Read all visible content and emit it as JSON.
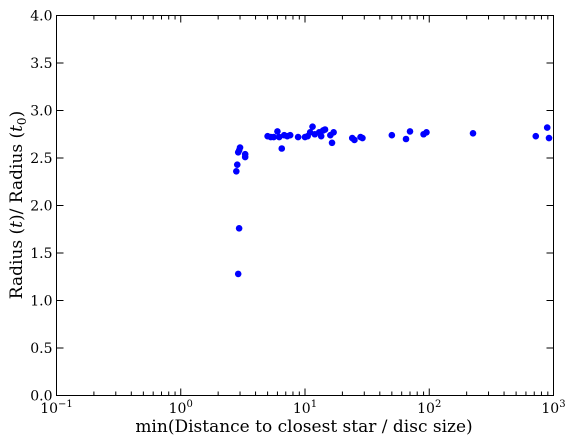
{
  "chart_data": {
    "type": "scatter",
    "title": "",
    "xlabel": "min(Distance to closest star / disc size)",
    "ylabel_parts": [
      "Radius (",
      "t",
      ")/ Radius (",
      "t",
      "0",
      ")"
    ],
    "xscale": "log",
    "xlim": [
      0.1,
      1000
    ],
    "ylim": [
      0.0,
      4.0
    ],
    "grid": false,
    "legend": "none",
    "marker_color": "#0000ff",
    "x_ticks": [
      {
        "value": 0.1,
        "base": "10",
        "exp": "−1"
      },
      {
        "value": 1,
        "base": "10",
        "exp": "0"
      },
      {
        "value": 10,
        "base": "10",
        "exp": "1"
      },
      {
        "value": 100,
        "base": "10",
        "exp": "2"
      },
      {
        "value": 1000,
        "base": "10",
        "exp": "3"
      }
    ],
    "y_ticks": [
      "0.0",
      "0.5",
      "1.0",
      "1.5",
      "2.0",
      "2.5",
      "3.0",
      "3.5",
      "4.0"
    ],
    "points": [
      {
        "x": 2.8,
        "y": 2.36
      },
      {
        "x": 2.85,
        "y": 2.43
      },
      {
        "x": 2.9,
        "y": 2.56
      },
      {
        "x": 2.95,
        "y": 2.58
      },
      {
        "x": 3.0,
        "y": 2.61
      },
      {
        "x": 2.95,
        "y": 1.76
      },
      {
        "x": 2.9,
        "y": 1.28
      },
      {
        "x": 3.3,
        "y": 2.54
      },
      {
        "x": 3.3,
        "y": 2.51
      },
      {
        "x": 5.0,
        "y": 2.73
      },
      {
        "x": 5.3,
        "y": 2.72
      },
      {
        "x": 5.6,
        "y": 2.72
      },
      {
        "x": 6.0,
        "y": 2.78
      },
      {
        "x": 6.2,
        "y": 2.72
      },
      {
        "x": 6.5,
        "y": 2.6
      },
      {
        "x": 6.8,
        "y": 2.74
      },
      {
        "x": 7.2,
        "y": 2.73
      },
      {
        "x": 7.6,
        "y": 2.74
      },
      {
        "x": 8.8,
        "y": 2.72
      },
      {
        "x": 10.0,
        "y": 2.72
      },
      {
        "x": 10.5,
        "y": 2.73
      },
      {
        "x": 11.0,
        "y": 2.77
      },
      {
        "x": 11.5,
        "y": 2.83
      },
      {
        "x": 12.0,
        "y": 2.75
      },
      {
        "x": 13.0,
        "y": 2.77
      },
      {
        "x": 13.5,
        "y": 2.73
      },
      {
        "x": 14.0,
        "y": 2.79
      },
      {
        "x": 14.5,
        "y": 2.8
      },
      {
        "x": 16.0,
        "y": 2.74
      },
      {
        "x": 16.5,
        "y": 2.66
      },
      {
        "x": 17.0,
        "y": 2.77
      },
      {
        "x": 24.0,
        "y": 2.71
      },
      {
        "x": 25.0,
        "y": 2.69
      },
      {
        "x": 28.0,
        "y": 2.72
      },
      {
        "x": 29.0,
        "y": 2.71
      },
      {
        "x": 50.0,
        "y": 2.74
      },
      {
        "x": 65.0,
        "y": 2.7
      },
      {
        "x": 70.0,
        "y": 2.78
      },
      {
        "x": 90.0,
        "y": 2.75
      },
      {
        "x": 95.0,
        "y": 2.77
      },
      {
        "x": 225.0,
        "y": 2.76
      },
      {
        "x": 720.0,
        "y": 2.73
      },
      {
        "x": 890.0,
        "y": 2.82
      },
      {
        "x": 920.0,
        "y": 2.71
      }
    ]
  }
}
